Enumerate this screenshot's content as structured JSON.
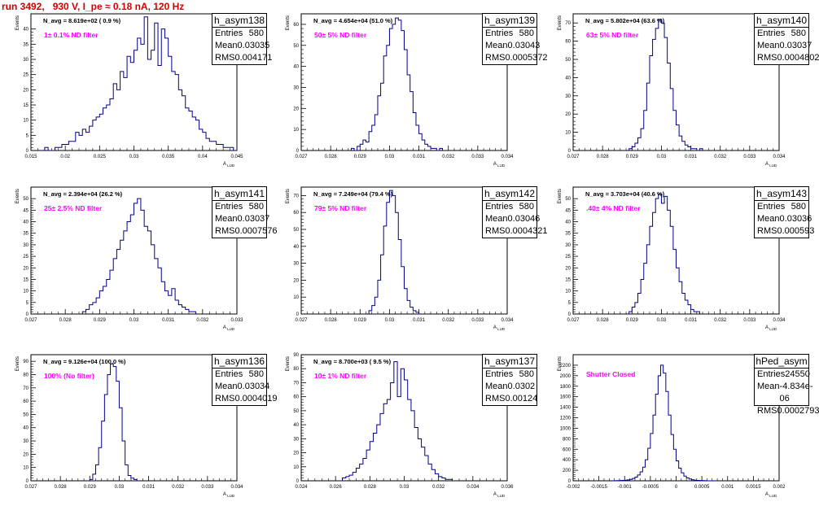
{
  "header": {
    "title": "run 3492,   930 V, I_pe ≈ 0.18 nA, 120 Hz"
  },
  "colors": {
    "title": "#d40000",
    "annotation": "#ff00ff",
    "histogram": "#00008b",
    "stats_box_border": "#000000"
  },
  "chart_data": [
    {
      "type": "bar",
      "name": "h_asym138",
      "xlabel": "A_LUD",
      "ylabel": "Events",
      "xlim": [
        0.015,
        0.045
      ],
      "ylim": [
        0,
        45
      ],
      "xticks": [
        "0.015",
        "0.02",
        "0.025",
        "0.03",
        "0.035",
        "0.04",
        "0.045"
      ],
      "yticks": [
        "0",
        "5",
        "10",
        "15",
        "20",
        "25",
        "30",
        "35",
        "40"
      ],
      "navg": "N_avg = 8.619e+02 ( 0.9 %)",
      "filter": "1± 0.1% ND filter",
      "stats": {
        "entries": "580",
        "mean": "0.03035",
        "rms": "0.004171"
      },
      "bins": {
        "start": 0.017,
        "width": 0.0005,
        "values": [
          1,
          0,
          0,
          1,
          1,
          2,
          2,
          3,
          3,
          6,
          5,
          7,
          6,
          8,
          10,
          11,
          12,
          14,
          15,
          17,
          22,
          20,
          26,
          24,
          31,
          29,
          33,
          37,
          35,
          44,
          30,
          33,
          42,
          28,
          40,
          37,
          31,
          26,
          25,
          20,
          18,
          14,
          13,
          11,
          10,
          7,
          6,
          4,
          3,
          3,
          2,
          2,
          1,
          1,
          1,
          0,
          1
        ]
      }
    },
    {
      "type": "bar",
      "name": "h_asym139",
      "xlabel": "A_LUD",
      "ylabel": "Events",
      "xlim": [
        0.027,
        0.034
      ],
      "ylim": [
        0,
        65
      ],
      "xticks": [
        "0.027",
        "0.028",
        "0.029",
        "0.03",
        "0.031",
        "0.032",
        "0.033",
        "0.034"
      ],
      "yticks": [
        "0",
        "10",
        "20",
        "30",
        "40",
        "50",
        "60"
      ],
      "navg": "N_avg = 4.654e+04 (51.0 %)",
      "filter": "50± 5% ND filter",
      "stats": {
        "entries": "580",
        "mean": "0.03043",
        "rms": "0.0005372"
      },
      "bins": {
        "start": 0.0287,
        "width": 0.0001,
        "values": [
          1,
          0,
          2,
          3,
          5,
          4,
          9,
          12,
          17,
          26,
          32,
          45,
          50,
          58,
          60,
          63,
          62,
          57,
          48,
          36,
          28,
          18,
          12,
          8,
          5,
          3,
          2,
          1,
          1,
          0,
          1
        ]
      }
    },
    {
      "type": "bar",
      "name": "h_asym140",
      "xlabel": "A_LUD",
      "ylabel": "Events",
      "xlim": [
        0.027,
        0.034
      ],
      "ylim": [
        0,
        75
      ],
      "xticks": [
        "0.027",
        "0.028",
        "0.029",
        "0.03",
        "0.031",
        "0.032",
        "0.033",
        "0.034"
      ],
      "yticks": [
        "0",
        "10",
        "20",
        "30",
        "40",
        "50",
        "60",
        "70"
      ],
      "navg": "N_avg = 5.802e+04 (63.6 %)",
      "filter": "63± 5% ND filter",
      "stats": {
        "entries": "580",
        "mean": "0.03037",
        "rms": "0.0004802"
      },
      "bins": {
        "start": 0.0289,
        "width": 0.0001,
        "values": [
          1,
          2,
          4,
          7,
          12,
          22,
          37,
          52,
          61,
          67,
          72,
          70,
          62,
          48,
          34,
          22,
          14,
          8,
          5,
          3,
          2,
          1,
          1,
          0,
          1
        ]
      }
    },
    {
      "type": "bar",
      "name": "h_asym141",
      "xlabel": "A_LUD",
      "ylabel": "Events",
      "xlim": [
        0.027,
        0.033
      ],
      "ylim": [
        0,
        55
      ],
      "xticks": [
        "0.027",
        "0.028",
        "0.029",
        "0.03",
        "0.031",
        "0.032",
        "0.033"
      ],
      "yticks": [
        "0",
        "5",
        "10",
        "15",
        "20",
        "25",
        "30",
        "35",
        "40",
        "45",
        "50"
      ],
      "navg": "N_avg = 2.394e+04 (26.2 %)",
      "filter": "25± 2.5% ND filter",
      "stats": {
        "entries": "580",
        "mean": "0.03037",
        "rms": "0.0007576"
      },
      "bins": {
        "start": 0.0285,
        "width": 0.0001,
        "values": [
          1,
          2,
          4,
          5,
          7,
          10,
          12,
          15,
          19,
          24,
          28,
          32,
          36,
          40,
          43,
          48,
          50,
          45,
          38,
          36,
          30,
          24,
          20,
          14,
          10,
          8,
          11,
          6,
          4,
          3,
          2,
          1,
          1
        ]
      }
    },
    {
      "type": "bar",
      "name": "h_asym142",
      "xlabel": "A_LUD",
      "ylabel": "Events",
      "xlim": [
        0.027,
        0.034
      ],
      "ylim": [
        0,
        75
      ],
      "xticks": [
        "0.027",
        "0.028",
        "0.029",
        "0.03",
        "0.031",
        "0.032",
        "0.033",
        "0.034"
      ],
      "yticks": [
        "0",
        "10",
        "20",
        "30",
        "40",
        "50",
        "60",
        "70"
      ],
      "navg": "N_avg = 7.249e+04 (79.4 %)",
      "filter": "79± 5% ND filter",
      "stats": {
        "entries": "580",
        "mean": "0.03046",
        "rms": "0.0004321"
      },
      "bins": {
        "start": 0.0293,
        "width": 0.0001,
        "values": [
          2,
          5,
          10,
          20,
          35,
          52,
          66,
          73,
          70,
          60,
          44,
          28,
          15,
          8,
          4,
          2,
          1
        ]
      }
    },
    {
      "type": "bar",
      "name": "h_asym143",
      "xlabel": "A_LUD",
      "ylabel": "Events",
      "xlim": [
        0.027,
        0.034
      ],
      "ylim": [
        0,
        55
      ],
      "xticks": [
        "0.027",
        "0.028",
        "0.029",
        "0.03",
        "0.031",
        "0.032",
        "0.033",
        "0.034"
      ],
      "yticks": [
        "0",
        "5",
        "10",
        "15",
        "20",
        "25",
        "30",
        "35",
        "40",
        "45",
        "50"
      ],
      "navg": "N_avg = 3.703e+04 (40.6 %)",
      "filter": ".40± 4% ND filter",
      "stats": {
        "entries": "580",
        "mean": "0.03036",
        "rms": "0.000593"
      },
      "bins": {
        "start": 0.0289,
        "width": 0.0001,
        "values": [
          1,
          3,
          5,
          9,
          15,
          22,
          30,
          38,
          44,
          50,
          52,
          48,
          51,
          45,
          38,
          28,
          20,
          14,
          9,
          6,
          4,
          2,
          1,
          1
        ]
      }
    },
    {
      "type": "bar",
      "name": "h_asym136",
      "xlabel": "A_LUD",
      "ylabel": "Events",
      "xlim": [
        0.027,
        0.034
      ],
      "ylim": [
        0,
        95
      ],
      "xticks": [
        "0.027",
        "0.028",
        "0.029",
        "0.03",
        "0.031",
        "0.032",
        "0.033",
        "0.034"
      ],
      "yticks": [
        "0",
        "10",
        "20",
        "30",
        "40",
        "50",
        "60",
        "70",
        "80",
        "90"
      ],
      "navg": "N_avg = 9.126e+04 (100.0 %)",
      "filter": "100% (No filter)",
      "stats": {
        "entries": "580",
        "mean": "0.03034",
        "rms": "0.0004019"
      },
      "bins": {
        "start": 0.029,
        "width": 0.0001,
        "values": [
          1,
          5,
          12,
          25,
          45,
          65,
          80,
          88,
          86,
          75,
          55,
          30,
          12,
          4,
          2,
          1
        ]
      }
    },
    {
      "type": "bar",
      "name": "h_asym137",
      "xlabel": "A_LUD",
      "ylabel": "Events",
      "xlim": [
        0.024,
        0.036
      ],
      "ylim": [
        0,
        90
      ],
      "xticks": [
        "0.024",
        "0.026",
        "0.028",
        "0.03",
        "0.032",
        "0.034",
        "0.036"
      ],
      "yticks": [
        "0",
        "10",
        "20",
        "30",
        "40",
        "50",
        "60",
        "70",
        "80",
        "90"
      ],
      "navg": "N_avg = 8.700e+03 ( 9.5 %)",
      "filter": "10± 1% ND filter",
      "stats": {
        "entries": "580",
        "mean": "0.0302",
        "rms": "0.00124"
      },
      "bins": {
        "start": 0.0264,
        "width": 0.0002,
        "values": [
          2,
          3,
          4,
          6,
          9,
          12,
          16,
          22,
          28,
          34,
          40,
          48,
          55,
          58,
          70,
          85,
          60,
          80,
          72,
          58,
          50,
          38,
          30,
          24,
          18,
          12,
          8,
          5,
          3,
          2,
          1,
          1
        ]
      }
    },
    {
      "type": "bar",
      "name": "hPed_asym",
      "xlabel": "A_LUD",
      "ylabel": "Events",
      "xlim": [
        -0.002,
        0.002
      ],
      "ylim": [
        0,
        2400
      ],
      "xticks": [
        "-0.002",
        "-0.0015",
        "-0.001",
        "-0.0005",
        "0",
        "0.0005",
        "0.001",
        "0.0015",
        "0.002"
      ],
      "yticks": [
        "0",
        "200",
        "400",
        "600",
        "800",
        "1000",
        "1200",
        "1400",
        "1600",
        "1800",
        "2000",
        "2200"
      ],
      "navg": "",
      "filter": "Shutter Closed",
      "stats": {
        "entries": "24550",
        "mean": "-4.834e-06",
        "rms": "0.0002793"
      },
      "bins": {
        "start": -0.0012,
        "width": 5e-05,
        "values": [
          2,
          3,
          5,
          8,
          12,
          18,
          28,
          45,
          70,
          110,
          170,
          260,
          400,
          620,
          900,
          1250,
          1650,
          2000,
          2200,
          2050,
          1700,
          1250,
          880,
          600,
          380,
          240,
          150,
          90,
          55,
          32,
          20,
          12,
          8,
          5,
          3,
          2,
          1,
          1,
          1
        ]
      }
    }
  ]
}
